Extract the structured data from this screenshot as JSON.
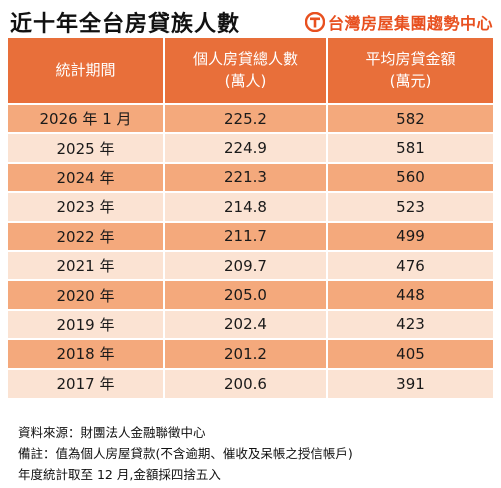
{
  "title": "近十年全台房貸族人數",
  "brand": {
    "name": "台灣房屋集團趨勢中心",
    "icon": "house-logo-icon",
    "color": "#e8501f"
  },
  "colors": {
    "header_bg": "#e86f3a",
    "row_dark": "#f4a97c",
    "row_light": "#fbe3d3"
  },
  "table": {
    "headers": [
      {
        "line1": "統計期間",
        "line2": ""
      },
      {
        "line1": "個人房貸總人數",
        "line2": "(萬人)"
      },
      {
        "line1": "平均房貸金額",
        "line2": "(萬元)"
      }
    ],
    "rows": [
      {
        "period": "2026 年 1 月",
        "borrowers": "225.2",
        "avg_loan": "582"
      },
      {
        "period": "2025 年",
        "borrowers": "224.9",
        "avg_loan": "581"
      },
      {
        "period": "2024 年",
        "borrowers": "221.3",
        "avg_loan": "560"
      },
      {
        "period": "2023 年",
        "borrowers": "214.8",
        "avg_loan": "523"
      },
      {
        "period": "2022 年",
        "borrowers": "211.7",
        "avg_loan": "499"
      },
      {
        "period": "2021 年",
        "borrowers": "209.7",
        "avg_loan": "476"
      },
      {
        "period": "2020 年",
        "borrowers": "205.0",
        "avg_loan": "448"
      },
      {
        "period": "2019 年",
        "borrowers": "202.4",
        "avg_loan": "423"
      },
      {
        "period": "2018 年",
        "borrowers": "201.2",
        "avg_loan": "405"
      },
      {
        "period": "2017 年",
        "borrowers": "200.6",
        "avg_loan": "391"
      }
    ]
  },
  "notes": [
    "資料來源：財團法人金融聯徵中心",
    "備註：值為個人房屋貸款(不含逾期、催收及呆帳之授信帳戶)",
    "年度統計取至 12 月,金額採四捨五入"
  ],
  "chart_data": {
    "type": "table",
    "title": "近十年全台房貸族人數",
    "columns": [
      "統計期間",
      "個人房貸總人數 (萬人)",
      "平均房貸金額 (萬元)"
    ],
    "categories": [
      "2026 年 1 月",
      "2025 年",
      "2024 年",
      "2023 年",
      "2022 年",
      "2021 年",
      "2020 年",
      "2019 年",
      "2018 年",
      "2017 年"
    ],
    "series": [
      {
        "name": "個人房貸總人數",
        "values": [
          225.2,
          224.9,
          221.3,
          214.8,
          211.7,
          209.7,
          205.0,
          202.4,
          201.2,
          200.6
        ]
      },
      {
        "name": "平均房貸金額",
        "values": [
          582,
          581,
          560,
          523,
          499,
          476,
          448,
          423,
          405,
          391
        ]
      }
    ]
  }
}
